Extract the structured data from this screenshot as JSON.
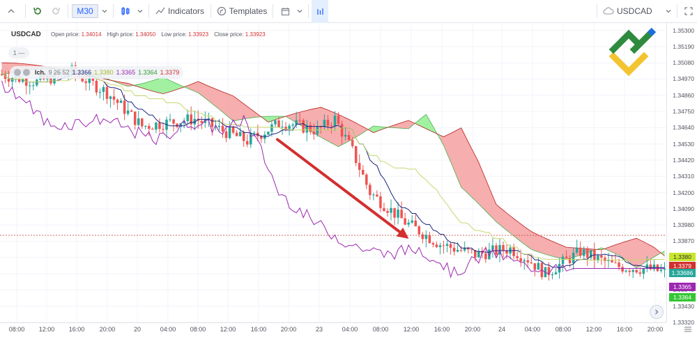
{
  "toolbar": {
    "timeframe": "M30",
    "indicators_label": "Indicators",
    "templates_label": "Templates",
    "symbol": "USDCAD"
  },
  "legend": {
    "symbol": "USDCAD",
    "open_label": "Open price:",
    "open_value": "1.34014",
    "high_label": "High price:",
    "high_value": "1.34050",
    "low_label": "Low price:",
    "low_value": "1.33923",
    "close_label": "Close price:",
    "close_value": "1.33923"
  },
  "collapse_label": "1 —",
  "indicator": {
    "name": "Ich.",
    "params": "9 26 52",
    "v1": "1.3366",
    "v2": "1.3380",
    "v3": "1.3365",
    "v4": "1.3364",
    "v5": "1.3379"
  },
  "price_axis": [
    "1.35300",
    "1.35190",
    "1.35080",
    "1.34970",
    "1.34860",
    "1.34750",
    "1.34640",
    "1.34530",
    "1.34420",
    "1.34310",
    "1.34200",
    "1.34090",
    "1.33980",
    "1.33870",
    "1.33760",
    "1.33650",
    "1.33540",
    "1.33430",
    "1.33320"
  ],
  "price_tags": [
    {
      "text": "1.3380",
      "color": "#c8e62e",
      "fg": "#333333"
    },
    {
      "text": "1.3379",
      "color": "#d32f2f",
      "fg": "#ffffff"
    },
    {
      "text": "1.33686",
      "color": "#26a69a",
      "fg": "#ffffff"
    },
    {
      "text": "1.3365",
      "color": "#9c27b0",
      "fg": "#ffffff"
    },
    {
      "text": "1.3364",
      "color": "#34c734",
      "fg": "#ffffff"
    }
  ],
  "time_axis": [
    "08:00",
    "12:00",
    "16:00",
    "20:00",
    "20",
    "04:00",
    "08:00",
    "12:00",
    "16:00",
    "20:00",
    "23",
    "04:00",
    "08:00",
    "12:00",
    "16:00",
    "20:00",
    "24",
    "04:00",
    "08:00",
    "12:00",
    "16:00",
    "20:00"
  ],
  "colors": {
    "bull": "#26a69a",
    "bear": "#ef5350",
    "cloud_bull": "#90ee90",
    "cloud_bear": "#f4a0a0",
    "tenkan": "#1a237e",
    "kijun": "#c5d86d",
    "chikou": "#9c27b0",
    "arrow": "#d32f2f"
  },
  "chart_data": {
    "type": "candlestick",
    "symbol": "USDCAD",
    "timeframe": "M30",
    "indicator": "Ichimoku (9, 26, 52)",
    "ylim": [
      1.3332,
      1.3535
    ],
    "trend_arrow": {
      "from_price": 1.3456,
      "to_price": 1.3391
    }
  }
}
